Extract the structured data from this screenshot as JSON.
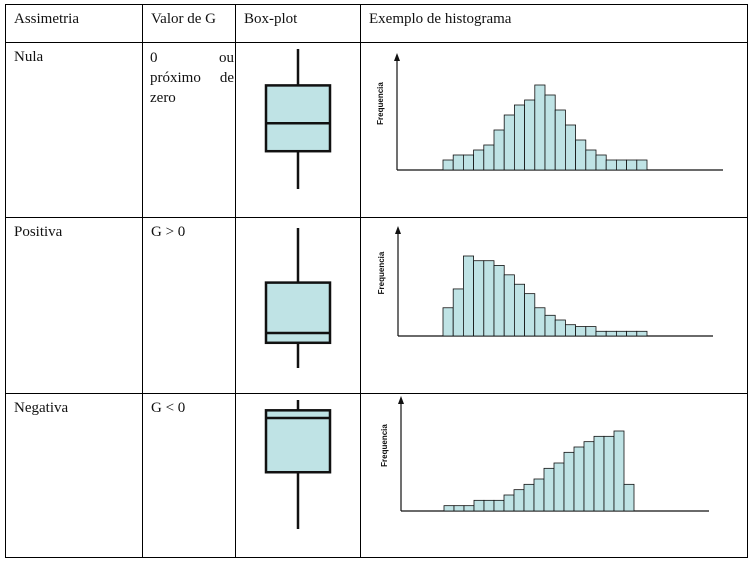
{
  "headers": [
    "Assimetria",
    "Valor de G",
    "Box-plot",
    "Exemplo de histograma"
  ],
  "rows": [
    {
      "asymmetry": "Nula",
      "g_value_words": [
        "0",
        "ou",
        "próximo",
        "de",
        "zero"
      ],
      "boxplot": {
        "whisker_low": 0.0,
        "q1": 0.27,
        "median": 0.47,
        "q3": 0.74,
        "whisker_high": 1.0
      },
      "histogram": {
        "ylabel": "Frequencia",
        "counts": [
          1,
          1.5,
          1.5,
          2,
          2.5,
          4,
          5.5,
          6.5,
          7,
          8.5,
          7.5,
          6,
          4.5,
          3,
          2,
          1.5,
          1,
          1,
          1,
          1
        ]
      }
    },
    {
      "asymmetry": "Positiva",
      "g_value": "G > 0",
      "boxplot": {
        "whisker_low": 0.0,
        "q1": 0.18,
        "median": 0.25,
        "q3": 0.61,
        "whisker_high": 1.0
      },
      "histogram": {
        "ylabel": "Frequencia",
        "counts": [
          3,
          5,
          8.5,
          8,
          8,
          7.5,
          6.5,
          5.5,
          4.5,
          3,
          2.2,
          1.7,
          1.2,
          1,
          1,
          0.5,
          0.5,
          0.5,
          0.5,
          0.5
        ]
      }
    },
    {
      "asymmetry": "Negativa",
      "g_value": "G < 0",
      "boxplot": {
        "whisker_low": 0.0,
        "q1": 0.44,
        "median": 0.86,
        "q3": 0.92,
        "whisker_high": 1.0
      },
      "histogram": {
        "ylabel": "Frequencia",
        "counts": [
          0.5,
          0.5,
          0.5,
          1,
          1,
          1,
          1.5,
          2,
          2.5,
          3,
          4,
          4.5,
          5.5,
          6,
          6.5,
          7,
          7,
          7.5,
          2.5
        ]
      }
    }
  ],
  "colors": {
    "fill": "#bfe3e5",
    "stroke": "#111111",
    "border": "#000000"
  }
}
